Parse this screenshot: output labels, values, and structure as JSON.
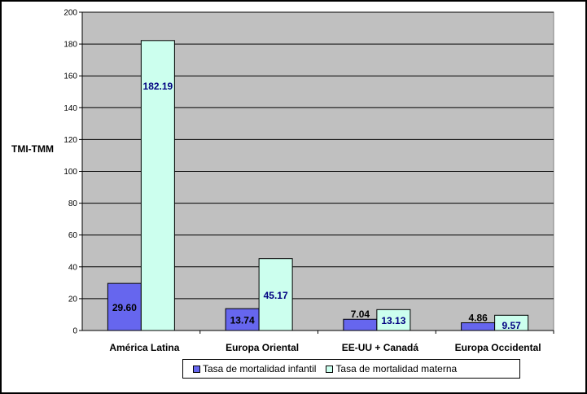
{
  "chart_data": {
    "type": "bar",
    "ylabel": "TMI-TMM",
    "ylim": [
      0,
      200
    ],
    "yticks": [
      "0",
      "20",
      "40",
      "60",
      "80",
      "100",
      "120",
      "140",
      "160",
      "180",
      "200"
    ],
    "categories": [
      "América Latina",
      "Europa Oriental",
      "EE-UU + Canadá",
      "Europa Occidental"
    ],
    "series": [
      {
        "name": "Tasa de mortalidad infantil",
        "values": [
          29.6,
          13.74,
          7.04,
          4.86
        ],
        "labels": [
          "29.60",
          "13.74",
          "7.04",
          "4.86"
        ],
        "color": "#6666ee",
        "label_color": "#000000"
      },
      {
        "name": "Tasa de mortalidad materna",
        "values": [
          182.19,
          45.17,
          13.13,
          9.57
        ],
        "labels": [
          "182.19",
          "45.17",
          "13.13",
          "9.57"
        ],
        "color": "#ccffee",
        "label_color": "#000080"
      }
    ],
    "plot_background": "#c0c0c0",
    "grid": true,
    "legend_position": "bottom"
  }
}
